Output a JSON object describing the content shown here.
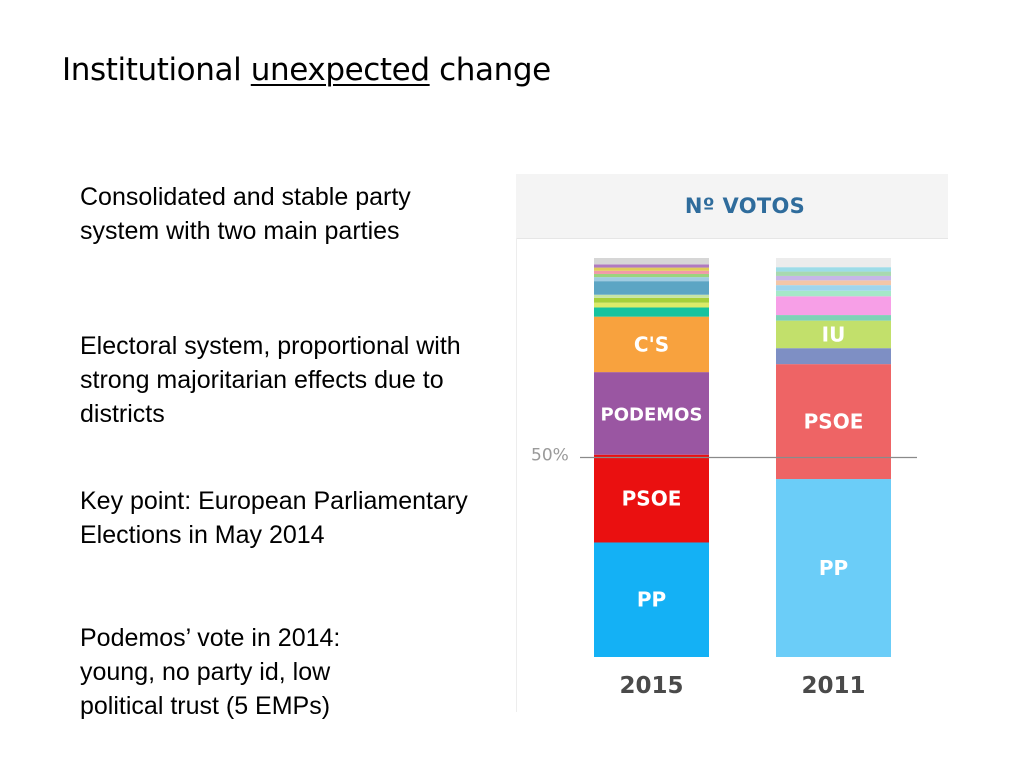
{
  "slide": {
    "title_before": "Institutional ",
    "title_underlined": "unexpected",
    "title_after": " change",
    "bullets": [
      "Consolidated and stable party system with two main parties",
      "Electoral system, proportional with strong majoritarian effects due to districts",
      "Key point: European Parliamentary Elections in May 2014",
      "Podemos’ vote in 2014: young, no party id, low political trust (5 EMPs)"
    ]
  },
  "chart_data": {
    "type": "bar",
    "stacked": true,
    "title": "Nº VOTOS",
    "categories": [
      "2015",
      "2011"
    ],
    "unit": "percent of votes",
    "ylim": [
      0,
      100
    ],
    "reference_line": {
      "value": 50,
      "label": "50%"
    },
    "stack_order": "bottom-to-top",
    "series": [
      {
        "stack": "2015",
        "segments": [
          {
            "name": "PP",
            "value": 28.7,
            "color": "#14b1f5",
            "labeled": true
          },
          {
            "name": "PSOE",
            "value": 22.0,
            "color": "#ea1010",
            "labeled": true
          },
          {
            "name": "PODEMOS",
            "value": 20.7,
            "color": "#9a56a2",
            "labeled": true
          },
          {
            "name": "C'S",
            "value": 13.9,
            "color": "#f8a23e",
            "labeled": true
          },
          {
            "name": "",
            "value": 2.3,
            "color": "#16c39f",
            "labeled": false
          },
          {
            "name": "",
            "value": 1.2,
            "color": "#ddeb69",
            "labeled": false
          },
          {
            "name": "",
            "value": 1.2,
            "color": "#a7d03b",
            "labeled": false
          },
          {
            "name": "",
            "value": 0.8,
            "color": "#c7e4a6",
            "labeled": false
          },
          {
            "name": "",
            "value": 3.4,
            "color": "#5ca5c4",
            "labeled": false
          },
          {
            "name": "",
            "value": 1.0,
            "color": "#a0cce2",
            "labeled": false
          },
          {
            "name": "",
            "value": 0.8,
            "color": "#9bd37d",
            "labeled": false
          },
          {
            "name": "",
            "value": 0.8,
            "color": "#f09aa8",
            "labeled": false
          },
          {
            "name": "",
            "value": 0.8,
            "color": "#e0cc58",
            "labeled": false
          },
          {
            "name": "",
            "value": 0.8,
            "color": "#b07ac0",
            "labeled": false
          },
          {
            "name": "",
            "value": 1.6,
            "color": "#d6d6d6",
            "labeled": false
          }
        ]
      },
      {
        "stack": "2011",
        "segments": [
          {
            "name": "PP",
            "value": 44.6,
            "color": "#6bcdf8",
            "labeled": true
          },
          {
            "name": "PSOE",
            "value": 28.8,
            "color": "#ee6465",
            "labeled": true
          },
          {
            "name": "",
            "value": 4.0,
            "color": "#7e8fc4",
            "labeled": false
          },
          {
            "name": "IU",
            "value": 6.9,
            "color": "#c2e06b",
            "labeled": true
          },
          {
            "name": "",
            "value": 1.4,
            "color": "#7ed2b7",
            "labeled": false
          },
          {
            "name": "",
            "value": 4.7,
            "color": "#f79fe7",
            "labeled": false
          },
          {
            "name": "",
            "value": 1.4,
            "color": "#a5e8c8",
            "labeled": false
          },
          {
            "name": "",
            "value": 1.4,
            "color": "#9fd5ee",
            "labeled": false
          },
          {
            "name": "",
            "value": 1.2,
            "color": "#f3c6a8",
            "labeled": false
          },
          {
            "name": "",
            "value": 1.1,
            "color": "#c7b6e8",
            "labeled": false
          },
          {
            "name": "",
            "value": 1.1,
            "color": "#a8d8b0",
            "labeled": false
          },
          {
            "name": "",
            "value": 1.1,
            "color": "#9ddce8",
            "labeled": false
          },
          {
            "name": "",
            "value": 2.3,
            "color": "#ececec",
            "labeled": false
          }
        ]
      }
    ]
  }
}
